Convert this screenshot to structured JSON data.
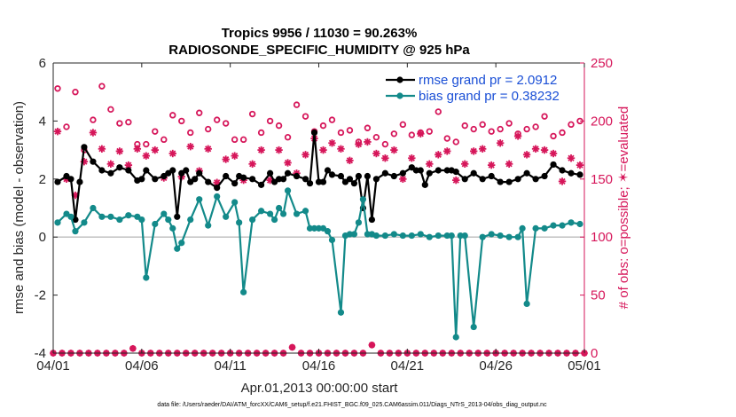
{
  "chart_data": {
    "type": "line",
    "title_line1": "Tropics 9956 / 11030 = 90.263%",
    "title_line2": "RADIOSONDE_SPECIFIC_HUMIDITY @ 925 hPa",
    "xlabel": "Apr.01,2013 00:00:00 start",
    "ylabel_left": "rmse and bias (model - observation)",
    "ylabel_right": "# of obs: o=possible; ✶=evaluated",
    "footer": "data file: /Users/raeder/DAI/ATM_forcXX/CAM6_setup/f.e21.FHIST_BGC.f09_025.CAM6assim.011/Diags_NTrS_2013-04/obs_diag_output.nc",
    "xlim": [
      0,
      30
    ],
    "ylim_left": [
      -4,
      6
    ],
    "ylim_right": [
      0,
      250
    ],
    "x_tick_values": [
      0,
      5,
      10,
      15,
      20,
      25,
      30
    ],
    "x_tick_labels": [
      "04/01",
      "04/06",
      "04/11",
      "04/16",
      "04/21",
      "04/26",
      "05/01"
    ],
    "y_left_ticks": [
      -4,
      -2,
      0,
      2,
      4,
      6
    ],
    "y_right_ticks": [
      0,
      50,
      100,
      150,
      200,
      250
    ],
    "colors": {
      "rmse": "#000000",
      "bias": "#138a8a",
      "counts": "#d6165a",
      "zero_line": "#bbbbbb",
      "legend_text": "#1a4fd6"
    },
    "series": [
      {
        "name": "rmse grand pr = 2.0912",
        "axis": "left",
        "x": [
          0.25,
          0.75,
          1.0,
          1.25,
          1.5,
          1.75,
          2.25,
          2.75,
          3.25,
          3.75,
          4.25,
          4.75,
          5.0,
          5.25,
          5.75,
          6.25,
          6.5,
          6.75,
          7.0,
          7.25,
          7.5,
          7.75,
          8.0,
          8.25,
          8.75,
          9.25,
          9.75,
          10.25,
          10.5,
          10.75,
          11.25,
          11.75,
          12.25,
          12.5,
          12.75,
          13.0,
          13.25,
          13.75,
          14.25,
          14.5,
          14.75,
          15.0,
          15.25,
          15.5,
          15.75,
          16.25,
          16.5,
          16.75,
          17.0,
          17.25,
          17.5,
          17.75,
          18.0,
          18.25,
          18.75,
          19.25,
          19.75,
          20.25,
          20.5,
          20.75,
          21.0,
          21.25,
          21.75,
          22.25,
          22.5,
          22.75,
          23.25,
          23.75,
          24.25,
          24.75,
          25.25,
          25.75,
          26.25,
          26.75,
          27.25,
          27.75,
          28.25,
          28.75,
          29.25,
          29.75
        ],
        "y": [
          1.9,
          2.1,
          2.0,
          0.6,
          1.9,
          3.1,
          2.6,
          2.3,
          2.2,
          2.4,
          2.3,
          1.95,
          2.0,
          2.3,
          2.0,
          2.1,
          2.2,
          2.3,
          0.7,
          2.2,
          2.3,
          1.9,
          2.0,
          2.2,
          1.9,
          1.7,
          2.1,
          1.85,
          2.1,
          2.05,
          2.0,
          1.8,
          2.2,
          1.9,
          2.0,
          2.0,
          2.2,
          2.1,
          2.0,
          1.85,
          3.6,
          1.9,
          1.9,
          2.3,
          2.15,
          2.1,
          1.9,
          2.0,
          1.85,
          2.1,
          1.0,
          2.1,
          0.6,
          2.0,
          2.2,
          2.1,
          2.2,
          2.4,
          2.3,
          2.3,
          1.8,
          2.2,
          2.3,
          2.3,
          2.3,
          2.25,
          2.0,
          2.2,
          2.0,
          2.1,
          1.9,
          1.9,
          2.0,
          2.2,
          2.0,
          2.1,
          2.5,
          2.3,
          2.2,
          2.15
        ]
      },
      {
        "name": "bias grand pr = 0.38232",
        "axis": "left",
        "x": [
          0.25,
          0.75,
          1.0,
          1.25,
          1.75,
          2.25,
          2.75,
          3.25,
          3.75,
          4.25,
          4.75,
          5.0,
          5.25,
          5.75,
          6.25,
          6.5,
          6.75,
          7.0,
          7.25,
          7.75,
          8.25,
          8.75,
          9.25,
          9.75,
          10.25,
          10.5,
          10.75,
          11.25,
          11.75,
          12.25,
          12.5,
          12.75,
          13.0,
          13.25,
          13.75,
          14.25,
          14.5,
          14.75,
          15.0,
          15.25,
          15.5,
          15.75,
          16.25,
          16.5,
          16.75,
          17.0,
          17.25,
          17.5,
          17.75,
          18.0,
          18.25,
          18.75,
          19.25,
          19.75,
          20.25,
          20.75,
          21.25,
          21.75,
          22.25,
          22.5,
          22.75,
          23.0,
          23.25,
          23.75,
          24.25,
          24.75,
          25.25,
          25.75,
          26.25,
          26.5,
          26.75,
          27.25,
          27.75,
          28.25,
          28.75,
          29.25,
          29.75
        ],
        "y": [
          0.5,
          0.8,
          0.7,
          0.2,
          0.5,
          1.0,
          0.7,
          0.7,
          0.6,
          0.75,
          0.7,
          0.6,
          -1.4,
          0.45,
          0.8,
          0.6,
          0.3,
          -0.4,
          -0.2,
          0.6,
          1.3,
          0.4,
          1.4,
          0.7,
          1.2,
          0.5,
          -1.9,
          0.6,
          0.9,
          0.8,
          0.6,
          1.0,
          0.8,
          1.6,
          0.8,
          0.9,
          0.3,
          0.3,
          0.3,
          0.3,
          0.2,
          -0.1,
          -2.6,
          0.05,
          0.1,
          0.1,
          0.5,
          1.3,
          0.1,
          0.1,
          0.05,
          0.05,
          0.1,
          0.05,
          0.05,
          0.1,
          0.0,
          0.05,
          0.05,
          0.05,
          -3.45,
          0.05,
          0.05,
          -3.1,
          0.0,
          0.1,
          0.05,
          0.0,
          0.0,
          0.3,
          -2.3,
          0.3,
          0.3,
          0.4,
          0.4,
          0.5,
          0.45
        ]
      }
    ],
    "counts_possible": {
      "name": "possible",
      "axis": "right",
      "x": [
        0.25,
        0.75,
        1.25,
        1.75,
        2.25,
        2.75,
        3.25,
        3.75,
        4.25,
        4.75,
        5.25,
        5.75,
        6.25,
        6.75,
        7.25,
        7.75,
        8.25,
        8.75,
        9.25,
        9.75,
        10.25,
        10.75,
        11.25,
        11.75,
        12.25,
        12.75,
        13.25,
        13.75,
        14.25,
        14.75,
        15.25,
        15.75,
        16.25,
        16.75,
        17.25,
        17.75,
        18.25,
        18.75,
        19.25,
        19.75,
        20.25,
        20.75,
        21.25,
        21.75,
        22.25,
        22.75,
        23.25,
        23.75,
        24.25,
        24.75,
        25.25,
        25.75,
        26.25,
        26.75,
        27.25,
        27.75,
        28.25,
        28.75,
        29.25,
        29.75
      ],
      "y": [
        228,
        195,
        225,
        175,
        201,
        230,
        210,
        198,
        199,
        180,
        180,
        191,
        184,
        205,
        200,
        190,
        207,
        193,
        201,
        198,
        184,
        184,
        206,
        190,
        200,
        196,
        186,
        214,
        204,
        191,
        196,
        201,
        190,
        192,
        182,
        194,
        186,
        180,
        189,
        197,
        188,
        190,
        191,
        208,
        185,
        182,
        196,
        193,
        197,
        191,
        193,
        198,
        189,
        193,
        195,
        204,
        187,
        190,
        197,
        200
      ]
    },
    "counts_evaluated": {
      "name": "evaluated",
      "axis": "right",
      "x": [
        0.25,
        0.75,
        1.25,
        1.75,
        2.25,
        2.75,
        3.25,
        3.75,
        4.25,
        4.75,
        5.25,
        5.75,
        6.25,
        6.75,
        7.25,
        7.75,
        8.25,
        8.75,
        9.25,
        9.75,
        10.25,
        10.75,
        11.25,
        11.75,
        12.25,
        12.75,
        13.25,
        13.75,
        14.25,
        14.75,
        15.25,
        15.75,
        16.25,
        16.75,
        17.25,
        17.75,
        18.25,
        18.75,
        19.25,
        19.75,
        20.25,
        20.75,
        21.25,
        21.75,
        22.25,
        22.75,
        23.25,
        23.75,
        24.25,
        24.75,
        25.25,
        25.75,
        26.25,
        26.75,
        27.25,
        27.75,
        28.25,
        28.75,
        29.25,
        29.75
      ],
      "y": [
        191,
        150,
        136,
        165,
        190,
        176,
        163,
        174,
        162,
        176,
        170,
        175,
        151,
        172,
        152,
        178,
        157,
        176,
        147,
        167,
        170,
        149,
        163,
        175,
        149,
        175,
        164,
        155,
        171,
        185,
        175,
        181,
        176,
        166,
        180,
        182,
        172,
        168,
        175,
        150,
        168,
        189,
        163,
        171,
        174,
        149,
        163,
        174,
        176,
        162,
        181,
        163,
        187,
        171,
        176,
        175,
        172,
        148,
        168,
        162
      ]
    },
    "counts_zero": {
      "axis": "right",
      "x": [
        0.0,
        0.5,
        1.0,
        1.5,
        2.0,
        2.5,
        3.0,
        3.5,
        4.0,
        4.5,
        5.0,
        5.5,
        6.0,
        6.5,
        7.0,
        7.5,
        8.0,
        8.5,
        9.0,
        9.5,
        10.0,
        10.5,
        11.0,
        11.5,
        12.0,
        12.5,
        13.0,
        13.5,
        14.0,
        14.5,
        15.0,
        15.5,
        16.0,
        16.5,
        17.0,
        17.5,
        18.0,
        18.5,
        19.0,
        19.5,
        20.0,
        20.5,
        21.0,
        21.5,
        22.0,
        22.5,
        23.0,
        23.5,
        24.0,
        24.5,
        25.0,
        25.5,
        26.0,
        26.5,
        27.0,
        27.5,
        28.0,
        28.5,
        29.0,
        29.5,
        30.0
      ],
      "y": [
        0,
        0,
        0,
        0,
        0,
        0,
        0,
        0,
        0,
        4,
        0,
        0,
        0,
        0,
        0,
        0,
        0,
        0,
        0,
        0,
        0,
        0,
        0,
        0,
        0,
        0,
        0,
        5,
        0,
        0,
        0,
        0,
        0,
        0,
        0,
        0,
        7,
        0,
        0,
        0,
        0,
        0,
        0,
        0,
        0,
        0,
        0,
        0,
        0,
        0,
        0,
        0,
        0,
        0,
        0,
        0,
        0,
        0,
        0,
        0,
        0
      ]
    },
    "legend": {
      "placement": "top-right",
      "rmse_label": "rmse grand pr = 2.0912",
      "bias_label": "bias grand pr = 0.38232"
    }
  }
}
